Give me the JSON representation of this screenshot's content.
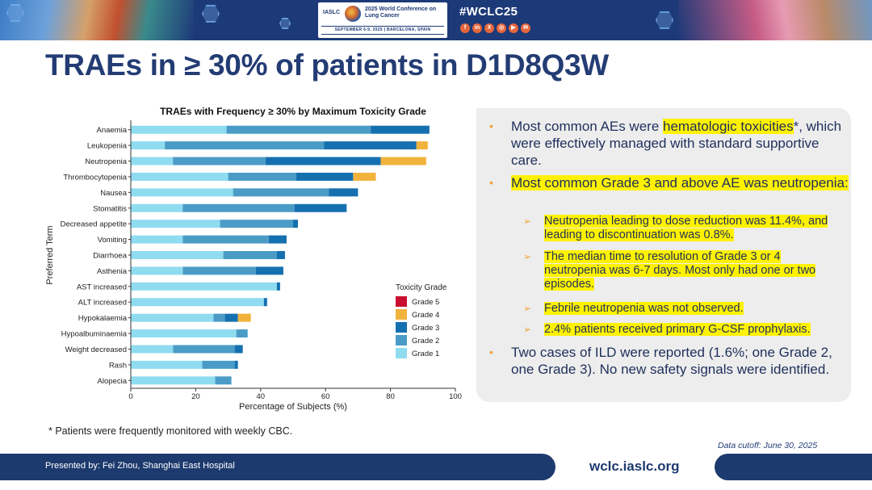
{
  "header": {
    "org": "IASLC",
    "conference_title": "2025 World Conference on Lung Cancer",
    "conference_dates": "SEPTEMBER 6-9, 2025 | BARCELONA, SPAIN",
    "hashtag": "#WCLC25",
    "social_icons": [
      "facebook-icon",
      "linkedin-icon",
      "x-icon",
      "instagram-icon",
      "youtube-icon",
      "wechat-icon"
    ],
    "social_glyphs": [
      "f",
      "in",
      "X",
      "◎",
      "▶",
      "✉"
    ]
  },
  "title": "TRAEs in ≥ 30% of patients in D1D8Q3W",
  "chart_data": {
    "type": "bar",
    "orientation": "horizontal",
    "stacked": true,
    "title": "TRAEs with Frequency ≥ 30% by Maximum Toxicity Grade",
    "xlabel": "Percentage of Subjects (%)",
    "ylabel": "Preferred Term",
    "xlim": [
      0,
      100
    ],
    "xticks": [
      0,
      20,
      40,
      60,
      80,
      100
    ],
    "grid": false,
    "legend_title": "Toxicity Grade",
    "legend_position": "center-right",
    "categories": [
      "Anaemia",
      "Leukopenia",
      "Neutropenia",
      "Thrombocytopenia",
      "Nausea",
      "Stomatitis",
      "Decreased appetite",
      "Vomiting",
      "Diarrhoea",
      "Asthenia",
      "AST increased",
      "ALT increased",
      "Hypokalaemia",
      "Hypoalbuminaemia",
      "Weight decreased",
      "Rash",
      "Alopecia"
    ],
    "series": [
      {
        "name": "Grade 1",
        "color": "#8fdcf0",
        "values": [
          29.5,
          10.5,
          13,
          30,
          31.5,
          16,
          27.5,
          16,
          28.5,
          16,
          45,
          41,
          25.5,
          32.5,
          13,
          22,
          26
        ]
      },
      {
        "name": "Grade 2",
        "color": "#4a9cc6",
        "values": [
          44.5,
          49,
          28.5,
          21,
          29.5,
          34.5,
          22.5,
          26.5,
          16.5,
          22.5,
          0,
          0,
          3.5,
          3.5,
          19,
          10,
          5
        ]
      },
      {
        "name": "Grade 3",
        "color": "#1570b0",
        "values": [
          18,
          28.5,
          35.5,
          17.5,
          9,
          16,
          1.5,
          5.5,
          2.5,
          8.5,
          1,
          1,
          4,
          0,
          2.5,
          1,
          0
        ]
      },
      {
        "name": "Grade 4",
        "color": "#f2b33d",
        "values": [
          0,
          3.5,
          14,
          7,
          0,
          0,
          0,
          0,
          0,
          0,
          0,
          0,
          4,
          0,
          0,
          0,
          0
        ]
      },
      {
        "name": "Grade 5",
        "color": "#c8102e",
        "values": [
          0,
          0,
          0,
          0,
          0,
          0,
          0,
          0,
          0,
          0,
          0,
          0,
          0,
          0,
          0,
          0,
          0
        ]
      }
    ],
    "legend_order": [
      "Grade 5",
      "Grade 4",
      "Grade 3",
      "Grade 2",
      "Grade 1"
    ]
  },
  "panel": {
    "bullets": [
      {
        "parts": [
          {
            "t": "Most common AEs were ",
            "hl": false
          },
          {
            "t": "hematologic toxicities",
            "hl": true
          },
          {
            "t": "*, which were effectively managed with standard supportive care.",
            "hl": false
          }
        ]
      },
      {
        "parts": [
          {
            "t": "Most common Grade 3 and above AE was neutropenia:",
            "hl": true
          }
        ]
      },
      {
        "parts": [
          {
            "t": "Two cases of ILD were reported (1.6%; one Grade 2, one Grade 3). No new safety signals were identified.",
            "hl": false
          }
        ]
      }
    ],
    "sub_bullets": [
      "Neutropenia leading to dose reduction was 11.4%, and leading to discontinuation was 0.8%.",
      "The median time to resolution of Grade 3 or 4 neutropenia was 6-7 days. Most only had one or two episodes.",
      "Febrile neutropenia was not observed.",
      "2.4% patients received primary G-CSF prophylaxis."
    ],
    "bullet_marker": "•",
    "sub_marker": "➢"
  },
  "footnote": "* Patients were frequently monitored with weekly CBC.",
  "data_cutoff": "Data cutoff: June 30, 2025",
  "footer": {
    "presented_by_label": "Presented by:",
    "presenter": "Fei Zhou, Shanghai East Hospital",
    "website": "wclc.iaslc.org"
  }
}
